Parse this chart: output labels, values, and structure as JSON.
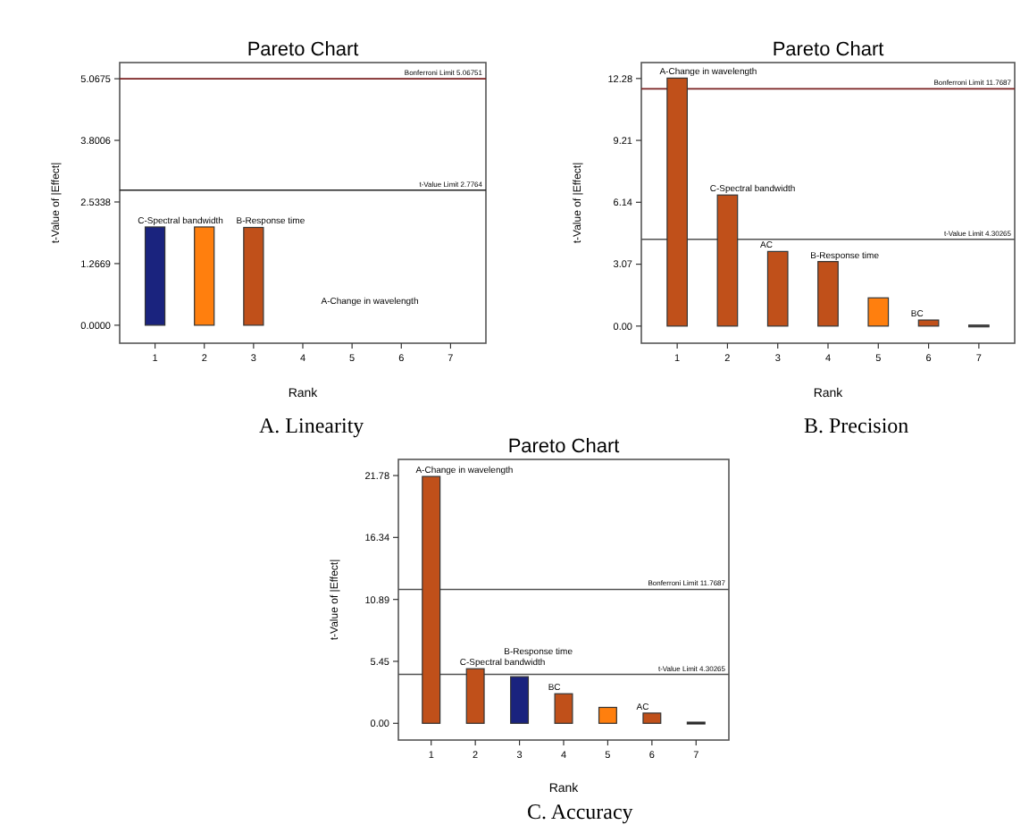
{
  "chart_data": [
    {
      "type": "bar",
      "title": "Pareto Chart",
      "xlabel": "Rank",
      "ylabel": "t-Value of |Effect|",
      "categories": [
        "1",
        "2",
        "3",
        "4",
        "5",
        "6",
        "7"
      ],
      "values": [
        2.02,
        2.02,
        2.01,
        null,
        null,
        null,
        null
      ],
      "colors": [
        "#1a237e",
        "#ff7f0e",
        "#c0501a",
        null,
        null,
        null,
        null
      ],
      "ylim": [
        -0.37,
        5.4
      ],
      "yticks": [
        {
          "value": 0,
          "label": "0.0000"
        },
        {
          "value": 1.2669,
          "label": "1.2669"
        },
        {
          "value": 2.5338,
          "label": "2.5338"
        },
        {
          "value": 3.8006,
          "label": "3.8006"
        },
        {
          "value": 5.0675,
          "label": "5.0675"
        }
      ],
      "ref_lines": [
        {
          "axis": "y",
          "value": 5.06751,
          "label": "Bonferroni Limit 5.06751",
          "color": "#7a2020"
        },
        {
          "axis": "y",
          "value": 2.7764,
          "label": "t-Value Limit 2.7764",
          "color": "#202020"
        }
      ],
      "annotations": [
        {
          "text": "C-Spectral bandwidth",
          "x": "1",
          "y": 2.02
        },
        {
          "text": "B-Response time",
          "x": "3",
          "y": 2.01
        },
        "A-Change in  wavelength",
        "A.   Linearity"
      ]
    },
    {
      "type": "bar",
      "title": "Pareto Chart",
      "xlabel": "Rank",
      "ylabel": "t-Value of |Effect|",
      "categories": [
        "1",
        "2",
        "3",
        "4",
        "5",
        "6",
        "7"
      ],
      "values": [
        12.3,
        6.5,
        3.7,
        3.2,
        1.4,
        0.3,
        0.05
      ],
      "colors": [
        "#c0501a",
        "#c0501a",
        "#c0501a",
        "#c0501a",
        "#ff7f0e",
        "#c0501a",
        "#505050"
      ],
      "ylim": [
        -0.85,
        13.07
      ],
      "yticks": [
        {
          "value": 0,
          "label": "0.00"
        },
        3.07,
        6.14,
        9.21,
        12.28
      ],
      "ref_lines": [
        {
          "axis": "y",
          "value": 11.7687,
          "label": "Bonferroni Limit 11.7687",
          "color": "#7a2020"
        },
        {
          "axis": "y",
          "value": 4.30265,
          "label": "t-Value Limit 4.30265",
          "color": "#505050"
        }
      ],
      "annotations": [
        {
          "text": "A-Change in  wavelength",
          "x": "1",
          "y": 12.3
        },
        {
          "text": "C-Spectral bandwidth",
          "x": "2",
          "y": 6.5
        },
        {
          "text": "AC",
          "x": "3",
          "y": 3.7
        },
        {
          "text": "B-Response time",
          "x": "4",
          "y": 3.2
        },
        {
          "text": "BC",
          "x": "6",
          "y": 0.3
        },
        "B. Precision"
      ]
    },
    {
      "type": "bar",
      "title": "Pareto Chart",
      "xlabel": "Rank",
      "ylabel": "t-Value of |Effect|",
      "categories": [
        "1",
        "2",
        "3",
        "4",
        "5",
        "6",
        "7"
      ],
      "values": [
        21.7,
        4.8,
        4.1,
        2.6,
        1.4,
        0.9,
        0.1
      ],
      "colors": [
        "#c0501a",
        "#c0501a",
        "#1a237e",
        "#c0501a",
        "#ff7f0e",
        "#c0501a",
        "#202020"
      ],
      "ylim": [
        -1.47,
        23.2
      ],
      "yticks": [
        {
          "value": 0,
          "label": "0.00"
        },
        5.45,
        10.89,
        16.34,
        21.78
      ],
      "ref_lines": [
        {
          "axis": "y",
          "value": 11.7687,
          "label": "Bonferroni Limit 11.7687",
          "color": "#505050"
        },
        {
          "axis": "y",
          "value": 4.30265,
          "label": "t-Value Limit 4.30265",
          "color": "#505050"
        }
      ],
      "annotations": [
        {
          "text": "A-Change in  wavelength",
          "x": "1",
          "y": 21.7
        },
        {
          "text": "C-Spectral bandwidth",
          "x": "2",
          "y": 4.8
        },
        {
          "text": "B-Response time",
          "x": "3",
          "y": 4.1
        },
        {
          "text": "BC",
          "x": "4",
          "y": 2.6
        },
        {
          "text": "AC",
          "x": "6",
          "y": 0.9
        },
        "C. Accuracy"
      ]
    }
  ]
}
